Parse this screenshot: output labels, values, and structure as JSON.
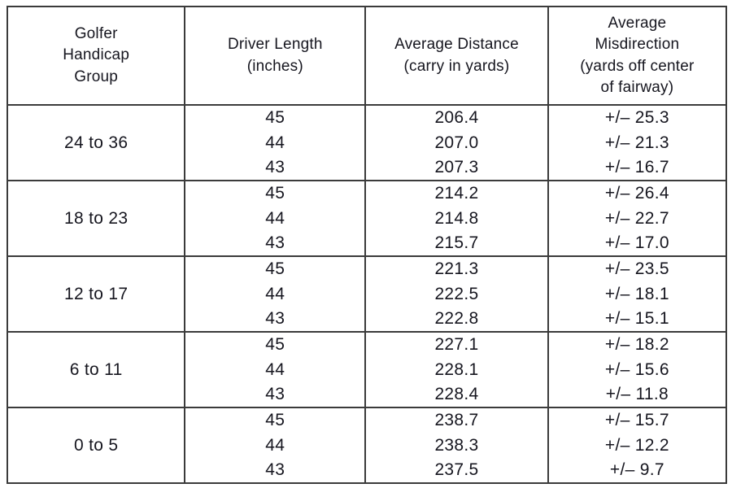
{
  "table": {
    "headers": [
      "Golfer\nHandicap\nGroup",
      "Driver Length\n(inches)",
      "Average Distance\n(carry in yards)",
      "Average\nMisdirection\n(yards off center\nof fairway)"
    ],
    "groups": [
      {
        "handicap": "24 to 36",
        "rows": [
          {
            "length": "45",
            "distance": "206.4",
            "misdirection": "+/– 25.3"
          },
          {
            "length": "44",
            "distance": "207.0",
            "misdirection": "+/– 21.3"
          },
          {
            "length": "43",
            "distance": "207.3",
            "misdirection": "+/– 16.7"
          }
        ]
      },
      {
        "handicap": "18 to 23",
        "rows": [
          {
            "length": "45",
            "distance": "214.2",
            "misdirection": "+/– 26.4"
          },
          {
            "length": "44",
            "distance": "214.8",
            "misdirection": "+/– 22.7"
          },
          {
            "length": "43",
            "distance": "215.7",
            "misdirection": "+/– 17.0"
          }
        ]
      },
      {
        "handicap": "12 to 17",
        "rows": [
          {
            "length": "45",
            "distance": "221.3",
            "misdirection": "+/– 23.5"
          },
          {
            "length": "44",
            "distance": "222.5",
            "misdirection": "+/– 18.1"
          },
          {
            "length": "43",
            "distance": "222.8",
            "misdirection": "+/– 15.1"
          }
        ]
      },
      {
        "handicap": "6 to 11",
        "rows": [
          {
            "length": "45",
            "distance": "227.1",
            "misdirection": "+/– 18.2"
          },
          {
            "length": "44",
            "distance": "228.1",
            "misdirection": "+/– 15.6"
          },
          {
            "length": "43",
            "distance": "228.4",
            "misdirection": "+/– 11.8"
          }
        ]
      },
      {
        "handicap": "0 to 5",
        "rows": [
          {
            "length": "45",
            "distance": "238.7",
            "misdirection": "+/– 15.7"
          },
          {
            "length": "44",
            "distance": "238.3",
            "misdirection": "+/– 12.2"
          },
          {
            "length": "43",
            "distance": "237.5",
            "misdirection": "+/– 9.7"
          }
        ]
      }
    ]
  },
  "colors": {
    "border": "#3b3b3b",
    "text": "#16161f",
    "background": "#ffffff"
  }
}
